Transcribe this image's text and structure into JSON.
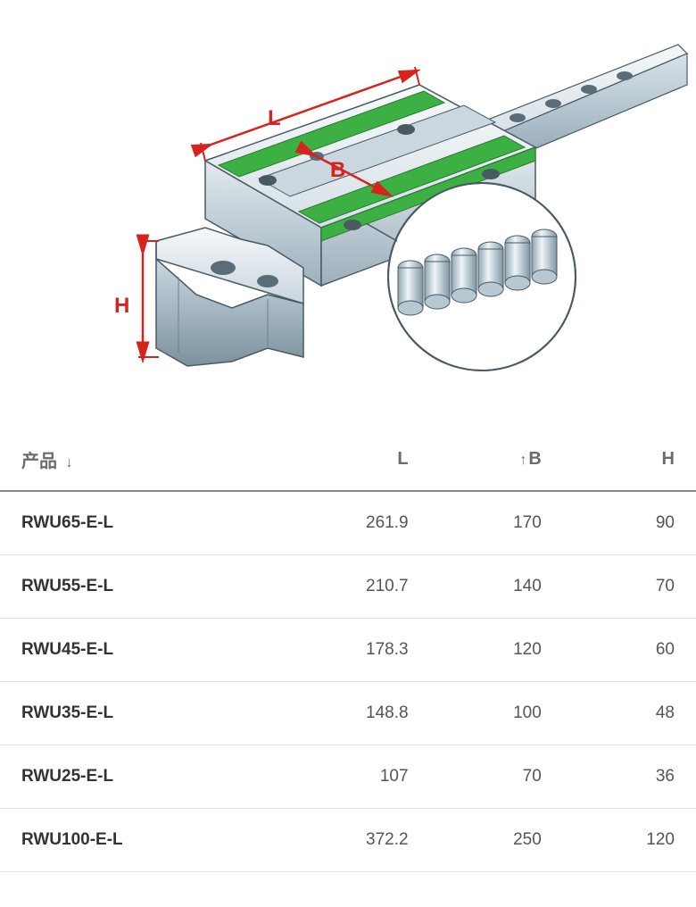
{
  "diagram": {
    "labels": {
      "L": "L",
      "B": "B",
      "H": "H"
    },
    "colors": {
      "dimension": "#d6231e",
      "accent": "#3cb043",
      "metal_light": "#f0f4f7",
      "metal_mid": "#c5d4dd",
      "metal_dark": "#8fa3af",
      "outline": "#4a5a64"
    }
  },
  "table": {
    "headers": {
      "product": "产品",
      "L": "L",
      "B": "B",
      "H": "H"
    },
    "sort": {
      "product": "down",
      "B": "up"
    },
    "rows": [
      {
        "name": "RWU65-E-L",
        "L": "261.9",
        "B": "170",
        "H": "90"
      },
      {
        "name": "RWU55-E-L",
        "L": "210.7",
        "B": "140",
        "H": "70"
      },
      {
        "name": "RWU45-E-L",
        "L": "178.3",
        "B": "120",
        "H": "60"
      },
      {
        "name": "RWU35-E-L",
        "L": "148.8",
        "B": "100",
        "H": "48"
      },
      {
        "name": "RWU25-E-L",
        "L": "107",
        "B": "70",
        "H": "36"
      },
      {
        "name": "RWU100-E-L",
        "L": "372.2",
        "B": "250",
        "H": "120"
      }
    ],
    "colors": {
      "header_text": "#6b6b6b",
      "header_border": "#888888",
      "row_border": "#e2e2e2",
      "name_text": "#333333",
      "value_text": "#555555"
    }
  }
}
